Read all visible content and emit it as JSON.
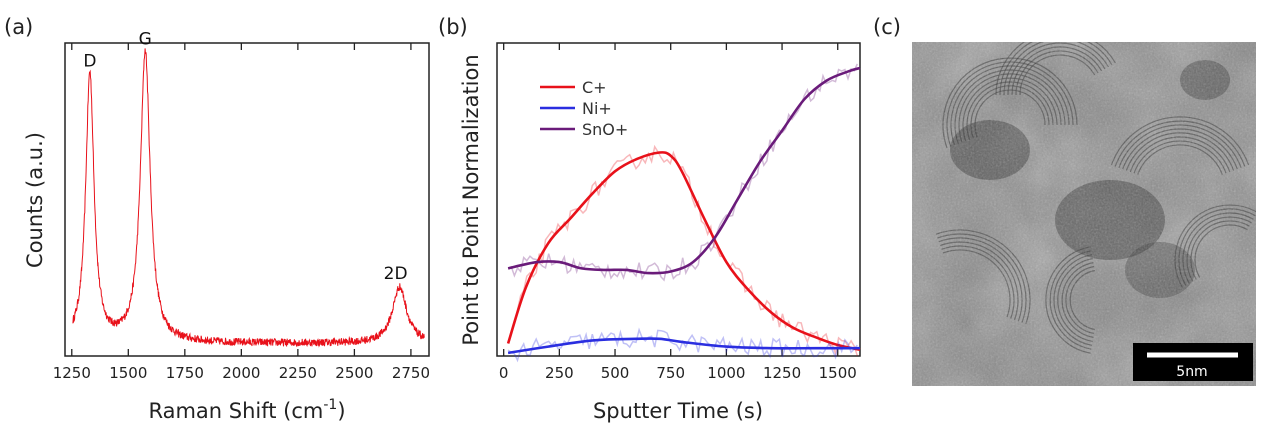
{
  "panel_labels": [
    "(a)",
    "(b)",
    "(c)"
  ],
  "chart_data": [
    {
      "type": "line",
      "panel": "(a)",
      "title": "",
      "xlabel": "Raman Shift (cm",
      "xlabel_sup": "-1",
      "xlabel_close": ")",
      "ylabel": "Counts (a.u.)",
      "xlim": [
        1220,
        2830
      ],
      "ylim": [
        0,
        1.0
      ],
      "xticks": [
        1250,
        1500,
        1750,
        2000,
        2250,
        2500,
        2750
      ],
      "yticks_visible": false,
      "color": "#e8111a",
      "peaks": [
        {
          "label": "D",
          "x": 1330,
          "y": 0.9
        },
        {
          "label": "G",
          "x": 1575,
          "y": 0.97
        },
        {
          "label": "2D",
          "x": 2700,
          "y": 0.22
        }
      ],
      "baseline": 0.04
    },
    {
      "type": "line",
      "panel": "(b)",
      "title": "",
      "xlabel": "Sputter Time (s)",
      "ylabel": "Point to Point Normalization",
      "xlim": [
        -30,
        1600
      ],
      "ylim": [
        0,
        1.0
      ],
      "xticks": [
        0,
        250,
        500,
        750,
        1000,
        1250,
        1500
      ],
      "yticks_visible": false,
      "legend_position": "top-left",
      "series": [
        {
          "name": "C+",
          "color": "#e8111a",
          "x": [
            20,
            100,
            200,
            300,
            400,
            500,
            600,
            700,
            750,
            800,
            900,
            1000,
            1100,
            1200,
            1300,
            1400,
            1500,
            1600
          ],
          "y": [
            0.04,
            0.22,
            0.36,
            0.44,
            0.52,
            0.59,
            0.63,
            0.65,
            0.64,
            0.59,
            0.44,
            0.3,
            0.21,
            0.14,
            0.09,
            0.06,
            0.035,
            0.02
          ]
        },
        {
          "name": "Ni+",
          "color": "#2a2ee0",
          "x": [
            20,
            200,
            400,
            600,
            700,
            800,
            1000,
            1200,
            1400,
            1600
          ],
          "y": [
            0.01,
            0.03,
            0.05,
            0.055,
            0.055,
            0.045,
            0.03,
            0.025,
            0.025,
            0.025
          ]
        },
        {
          "name": "SnO+",
          "color": "#6a1b7a",
          "x": [
            20,
            150,
            250,
            350,
            450,
            550,
            650,
            750,
            850,
            950,
            1050,
            1150,
            1250,
            1350,
            1450,
            1550,
            1600
          ],
          "y": [
            0.28,
            0.3,
            0.3,
            0.28,
            0.275,
            0.275,
            0.265,
            0.27,
            0.3,
            0.38,
            0.5,
            0.62,
            0.72,
            0.82,
            0.88,
            0.91,
            0.92
          ]
        }
      ]
    }
  ],
  "image_panel": {
    "scale_bar_label": "5nm"
  }
}
